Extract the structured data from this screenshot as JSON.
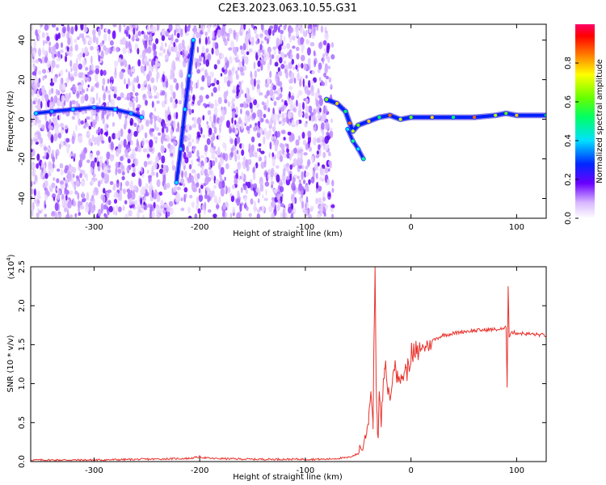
{
  "title": "C2E3.2023.063.10.55.G31",
  "chart_data": [
    {
      "type": "heatmap",
      "xlabel": "Height of straight line (km)",
      "ylabel": "Frequency (Hz)",
      "xlim": [
        -360,
        128
      ],
      "ylim": [
        -50,
        48
      ],
      "xticks": [
        -300,
        -200,
        -100,
        0,
        100
      ],
      "yticks": [
        -40,
        -20,
        0,
        20,
        40
      ],
      "colorbar": {
        "label": "Normalized spectral amplitude",
        "range": [
          0,
          1
        ],
        "ticks": [
          0.0,
          0.2,
          0.4,
          0.6,
          0.8
        ]
      },
      "features": {
        "noise_region_x": [
          -360,
          -80
        ],
        "low_freq_trace": [
          [
            -355,
            3
          ],
          [
            -340,
            4
          ],
          [
            -320,
            5
          ],
          [
            -300,
            6
          ],
          [
            -280,
            5
          ],
          [
            -265,
            3
          ],
          [
            -255,
            1
          ]
        ],
        "steep_trace": [
          [
            -222,
            -32
          ],
          [
            -218,
            -15
          ],
          [
            -214,
            5
          ],
          [
            -210,
            22
          ],
          [
            -206,
            40
          ]
        ],
        "main_trace": [
          [
            -80,
            10
          ],
          [
            -70,
            8
          ],
          [
            -62,
            4
          ],
          [
            -58,
            -2
          ],
          [
            -55,
            -6
          ],
          [
            -50,
            -3
          ],
          [
            -40,
            -1
          ],
          [
            -30,
            1
          ],
          [
            -20,
            2
          ],
          [
            -10,
            0
          ],
          [
            0,
            1
          ],
          [
            20,
            1
          ],
          [
            40,
            1
          ],
          [
            60,
            1
          ],
          [
            80,
            2
          ],
          [
            90,
            3
          ],
          [
            100,
            2
          ],
          [
            128,
            2
          ]
        ],
        "side_trace": [
          [
            -60,
            -5
          ],
          [
            -55,
            -11
          ],
          [
            -50,
            -15
          ],
          [
            -45,
            -20
          ]
        ]
      }
    },
    {
      "type": "line",
      "xlabel": "Height of straight line (km)",
      "ylabel": "SNR (10 * v/v)",
      "y_multiplier": "(x10",
      "y_multiplier_exp": "4",
      "y_multiplier_close": ")",
      "xlim": [
        -360,
        128
      ],
      "ylim": [
        0,
        2.5
      ],
      "xticks": [
        -300,
        -200,
        -100,
        0,
        100
      ],
      "yticks": [
        0.0,
        0.5,
        1.0,
        1.5,
        2.0,
        2.5
      ],
      "color": "#e8322c",
      "series": [
        {
          "x": [
            -360,
            -300,
            -250,
            -210,
            -200,
            -190,
            -150,
            -100,
            -80,
            -60,
            -50,
            -45,
            -42,
            -40,
            -38,
            -36,
            -35,
            -34,
            -33,
            -32,
            -31,
            -30,
            -28,
            -25,
            -20,
            -15,
            -10,
            -5,
            0,
            10,
            20,
            30,
            50,
            70,
            88,
            90,
            91,
            92,
            93,
            95,
            100,
            110,
            128
          ],
          "y": [
            0.02,
            0.02,
            0.03,
            0.04,
            0.06,
            0.04,
            0.03,
            0.03,
            0.03,
            0.05,
            0.1,
            0.2,
            0.35,
            0.6,
            0.9,
            0.5,
            1.6,
            2.5,
            1.0,
            0.6,
            0.3,
            0.9,
            0.5,
            1.2,
            0.8,
            1.3,
            1.0,
            1.2,
            1.3,
            1.45,
            1.55,
            1.62,
            1.67,
            1.69,
            1.7,
            1.72,
            0.95,
            2.25,
            1.6,
            1.66,
            1.65,
            1.64,
            1.62
          ]
        }
      ]
    }
  ]
}
